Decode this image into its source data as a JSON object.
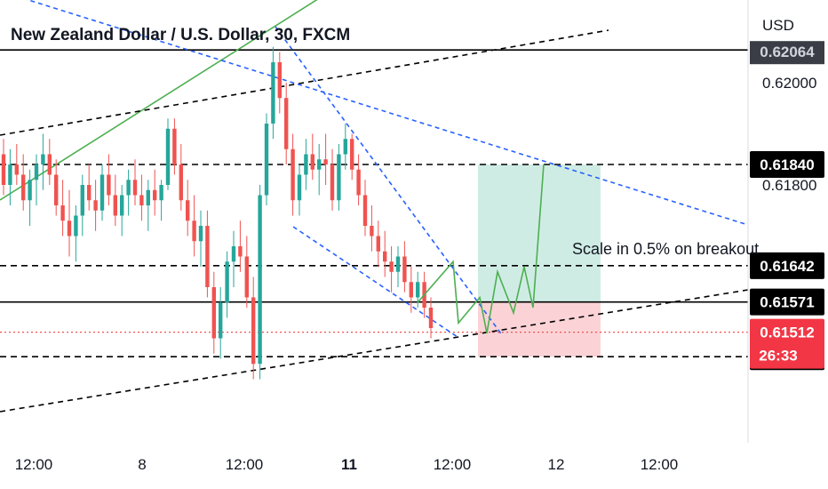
{
  "chart_data": {
    "type": "candlestick",
    "title": "New Zealand Dollar / U.S. Dollar, 30, FXCM",
    "currency_label": "USD",
    "x_tick_labels": [
      "12:00",
      "8",
      "12:00",
      "11",
      "12:00",
      "12",
      "12:00"
    ],
    "x_tick_bold": [
      false,
      false,
      false,
      true,
      false,
      false,
      false
    ],
    "y_tick_labels": [
      "0.62000",
      "0.61800"
    ],
    "ylim": [
      0.6137,
      0.6215
    ],
    "horizontal_levels": [
      {
        "label": "0.62064",
        "style": "solid",
        "tag_bg": "#131722",
        "tag_fg": "#ffffff"
      },
      {
        "label": "0.61840",
        "style": "dashed",
        "tag_bg": "#000000",
        "tag_fg": "#ffffff"
      },
      {
        "label": "0.61642",
        "style": "dashed",
        "tag_bg": "#000000",
        "tag_fg": "#ffffff"
      },
      {
        "label": "0.61571",
        "style": "solid",
        "tag_bg": "#000000",
        "tag_fg": "#ffffff"
      },
      {
        "label": "0.61464",
        "style": "dashed",
        "tag_bg": "#000000",
        "tag_fg": "#ffffff"
      }
    ],
    "last_price": {
      "label": "0.61512",
      "countdown": "26:33",
      "tag_bg": "#f23645",
      "tag_fg": "#ffffff"
    },
    "annotation": "Scale in 0.5% on breakout",
    "position": {
      "target_label": "0.61840",
      "entry_label": "0.61571",
      "stop_label": "0.61464"
    },
    "colors": {
      "up": "#26a69a",
      "down": "#ef5350",
      "trend_blue": "#2962ff",
      "trend_green": "#4caf50",
      "profit_zone": "#cfece4",
      "loss_zone": "#fbd3d6",
      "level_line": "#000000"
    },
    "candles": [
      [
        0.6186,
        0.6189,
        0.6178,
        0.618
      ],
      [
        0.618,
        0.6187,
        0.6176,
        0.6184
      ],
      [
        0.6184,
        0.6188,
        0.618,
        0.6182
      ],
      [
        0.6182,
        0.6186,
        0.6175,
        0.6177
      ],
      [
        0.6177,
        0.6183,
        0.6172,
        0.6181
      ],
      [
        0.6181,
        0.6186,
        0.6176,
        0.6184
      ],
      [
        0.6184,
        0.619,
        0.6179,
        0.6186
      ],
      [
        0.6186,
        0.6189,
        0.618,
        0.6182
      ],
      [
        0.6182,
        0.6185,
        0.6174,
        0.6176
      ],
      [
        0.6176,
        0.6181,
        0.617,
        0.6173
      ],
      [
        0.6173,
        0.6179,
        0.6166,
        0.617
      ],
      [
        0.617,
        0.6176,
        0.6165,
        0.6174
      ],
      [
        0.6174,
        0.6182,
        0.617,
        0.618
      ],
      [
        0.618,
        0.6184,
        0.6175,
        0.6177
      ],
      [
        0.6177,
        0.6181,
        0.6171,
        0.6175
      ],
      [
        0.6175,
        0.6184,
        0.6173,
        0.6182
      ],
      [
        0.6182,
        0.6186,
        0.6176,
        0.6178
      ],
      [
        0.6178,
        0.6182,
        0.6172,
        0.6174
      ],
      [
        0.6174,
        0.618,
        0.617,
        0.6178
      ],
      [
        0.6178,
        0.6183,
        0.6174,
        0.6181
      ],
      [
        0.6181,
        0.6185,
        0.6176,
        0.6178
      ],
      [
        0.6178,
        0.6182,
        0.6173,
        0.6176
      ],
      [
        0.6176,
        0.6181,
        0.6171,
        0.6179
      ],
      [
        0.6179,
        0.6183,
        0.6174,
        0.6177
      ],
      [
        0.6177,
        0.6181,
        0.6173,
        0.618
      ],
      [
        0.618,
        0.6193,
        0.6179,
        0.6191
      ],
      [
        0.6191,
        0.6193,
        0.6182,
        0.6184
      ],
      [
        0.6184,
        0.6188,
        0.6175,
        0.6177
      ],
      [
        0.6177,
        0.6181,
        0.617,
        0.6173
      ],
      [
        0.6173,
        0.6178,
        0.6166,
        0.6169
      ],
      [
        0.6169,
        0.6175,
        0.6164,
        0.6172
      ],
      [
        0.6172,
        0.6175,
        0.6158,
        0.616
      ],
      [
        0.616,
        0.6163,
        0.6147,
        0.615
      ],
      [
        0.615,
        0.616,
        0.6146,
        0.6157
      ],
      [
        0.6157,
        0.6167,
        0.6154,
        0.6165
      ],
      [
        0.6165,
        0.6171,
        0.616,
        0.6168
      ],
      [
        0.6168,
        0.6173,
        0.6163,
        0.6166
      ],
      [
        0.6166,
        0.617,
        0.6156,
        0.6158
      ],
      [
        0.6158,
        0.6162,
        0.6142,
        0.6145
      ],
      [
        0.6145,
        0.618,
        0.6142,
        0.6178
      ],
      [
        0.6178,
        0.6194,
        0.6176,
        0.6192
      ],
      [
        0.6192,
        0.6207,
        0.6189,
        0.6204
      ],
      [
        0.6204,
        0.6206,
        0.6194,
        0.6197
      ],
      [
        0.6197,
        0.62,
        0.6184,
        0.6187
      ],
      [
        0.6187,
        0.619,
        0.6174,
        0.6177
      ],
      [
        0.6177,
        0.6184,
        0.6174,
        0.6182
      ],
      [
        0.6182,
        0.6189,
        0.6179,
        0.6186
      ],
      [
        0.6186,
        0.619,
        0.6181,
        0.6183
      ],
      [
        0.6183,
        0.6188,
        0.6178,
        0.6185
      ],
      [
        0.6185,
        0.619,
        0.618,
        0.6184
      ],
      [
        0.6184,
        0.6187,
        0.6175,
        0.6177
      ],
      [
        0.6177,
        0.6188,
        0.6175,
        0.6186
      ],
      [
        0.6186,
        0.6192,
        0.6183,
        0.6189
      ],
      [
        0.6189,
        0.619,
        0.6181,
        0.6183
      ],
      [
        0.6183,
        0.6186,
        0.6176,
        0.6178
      ],
      [
        0.6178,
        0.6181,
        0.617,
        0.6172
      ],
      [
        0.6172,
        0.6176,
        0.6167,
        0.617
      ],
      [
        0.617,
        0.6173,
        0.6164,
        0.6167
      ],
      [
        0.6167,
        0.6171,
        0.6162,
        0.6165
      ],
      [
        0.6165,
        0.6168,
        0.6159,
        0.6163
      ],
      [
        0.6163,
        0.6168,
        0.616,
        0.6166
      ],
      [
        0.6166,
        0.6169,
        0.6159,
        0.6161
      ],
      [
        0.6161,
        0.6164,
        0.6155,
        0.6158
      ],
      [
        0.6158,
        0.6163,
        0.6156,
        0.6161
      ],
      [
        0.6161,
        0.6163,
        0.6154,
        0.6156
      ],
      [
        0.6156,
        0.6158,
        0.615,
        0.6152
      ]
    ],
    "projection_path_prices": [
      0.6157,
      0.6165,
      0.6153,
      0.6158,
      0.6151,
      0.6163,
      0.6155,
      0.6164,
      0.6156,
      0.6184
    ]
  }
}
